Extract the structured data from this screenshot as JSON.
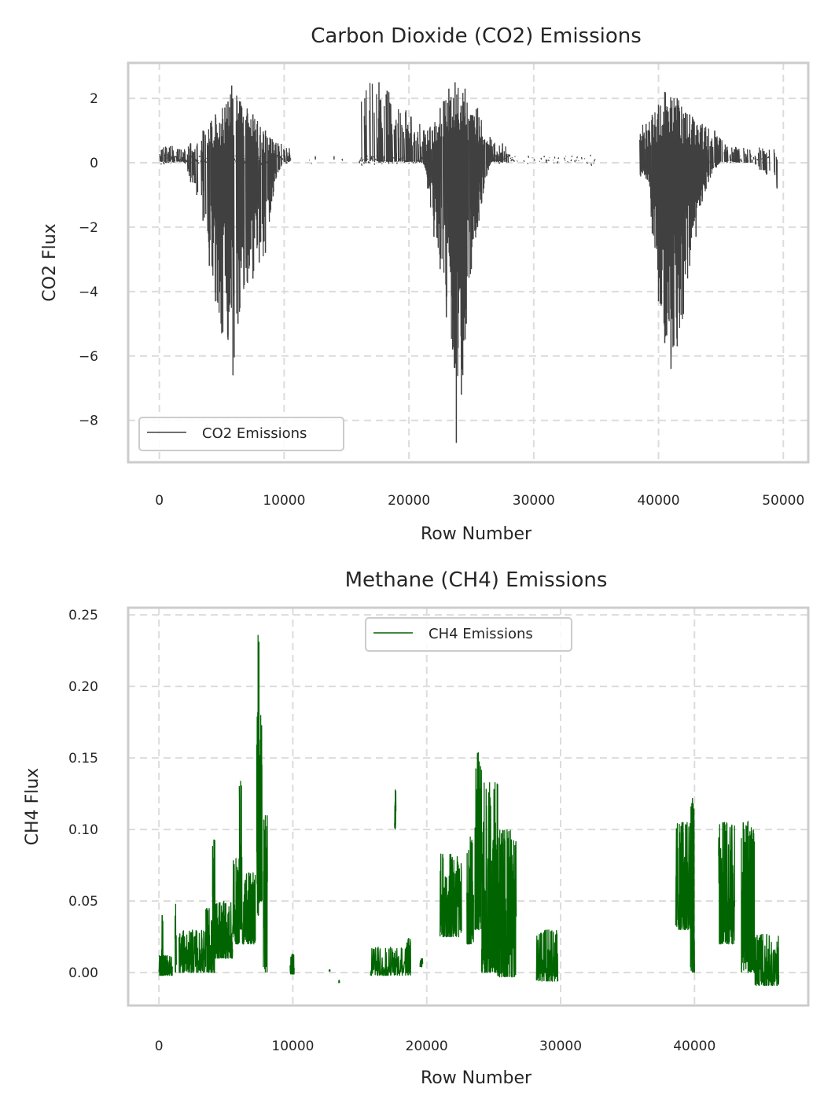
{
  "chart_data": [
    {
      "type": "line",
      "title": "Carbon Dioxide (CO2) Emissions",
      "xlabel": "Row Number",
      "ylabel": "CO2 Flux",
      "xlim": [
        -2500,
        52000
      ],
      "ylim": [
        -9.3,
        3.1
      ],
      "xticks": [
        0,
        10000,
        20000,
        30000,
        40000,
        50000
      ],
      "yticks": [
        2,
        0,
        -2,
        -4,
        -6,
        -8
      ],
      "ytick_labels": [
        "2",
        "0",
        "−2",
        "−4",
        "−6",
        "−8"
      ],
      "grid": true,
      "legend_position": "lower-left",
      "series": [
        {
          "name": "CO2 Emissions",
          "color": "#404040",
          "line_style": "dense vertical flux segments, row-level data",
          "bursts": [
            {
              "x_start": 0,
              "x_end": 10500,
              "peak_x": 5800,
              "min": -6.6,
              "max": 2.4
            },
            {
              "x_start": 16000,
              "x_end": 28000,
              "peak_x": 23700,
              "min": -8.7,
              "max": 2.5
            },
            {
              "x_start": 38500,
              "x_end": 49500,
              "peak_x": 41000,
              "min": -6.4,
              "max": 2.2
            }
          ],
          "points": [
            [
              0,
              0.1
            ],
            [
              500,
              0.2
            ],
            [
              1000,
              0.2
            ],
            [
              1500,
              0.3
            ],
            [
              2000,
              0.0
            ],
            [
              2500,
              -0.6
            ],
            [
              3000,
              -1.0
            ],
            [
              3500,
              -1.8
            ],
            [
              4000,
              -3.2
            ],
            [
              4500,
              -4.3
            ],
            [
              5000,
              -5.3
            ],
            [
              5500,
              -5.5
            ],
            [
              5900,
              -6.6
            ],
            [
              6300,
              -5.0
            ],
            [
              6800,
              -3.8
            ],
            [
              7500,
              -3.6
            ],
            [
              8000,
              -3.1
            ],
            [
              8500,
              -2.8
            ],
            [
              9000,
              -1.2
            ],
            [
              9500,
              -0.3
            ],
            [
              10000,
              0.1
            ],
            [
              12500,
              0.2
            ],
            [
              14000,
              0.2
            ],
            [
              16000,
              0.1
            ],
            [
              17000,
              0.2
            ],
            [
              18000,
              0.2
            ],
            [
              19000,
              0.3
            ],
            [
              20000,
              0.3
            ],
            [
              21000,
              0.2
            ],
            [
              21500,
              -0.8
            ],
            [
              22000,
              -2.3
            ],
            [
              22500,
              -3.3
            ],
            [
              23000,
              -4.8
            ],
            [
              23500,
              -5.8
            ],
            [
              23800,
              -8.7
            ],
            [
              24200,
              -7.2
            ],
            [
              24600,
              -5.0
            ],
            [
              25000,
              -3.3
            ],
            [
              25500,
              -2.0
            ],
            [
              26000,
              -0.8
            ],
            [
              26500,
              0.0
            ],
            [
              27500,
              0.3
            ],
            [
              28500,
              0.1
            ],
            [
              31000,
              0.0
            ],
            [
              33000,
              0.1
            ],
            [
              34500,
              0.1
            ],
            [
              39000,
              -0.5
            ],
            [
              39500,
              -2.2
            ],
            [
              40000,
              -4.3
            ],
            [
              40500,
              -5.6
            ],
            [
              41000,
              -6.4
            ],
            [
              41500,
              -5.7
            ],
            [
              42000,
              -4.7
            ],
            [
              42500,
              -3.2
            ],
            [
              43000,
              -2.3
            ],
            [
              43500,
              -1.2
            ],
            [
              44000,
              -0.6
            ],
            [
              45000,
              0.1
            ],
            [
              46500,
              0.0
            ],
            [
              47500,
              0.0
            ],
            [
              49500,
              -0.8
            ]
          ],
          "upper_envelope": [
            [
              500,
              0.5
            ],
            [
              2500,
              0.6
            ],
            [
              3500,
              1.0
            ],
            [
              4500,
              1.5
            ],
            [
              5500,
              1.9
            ],
            [
              5800,
              2.4
            ],
            [
              6500,
              1.9
            ],
            [
              7500,
              1.5
            ],
            [
              8500,
              1.0
            ],
            [
              9500,
              0.6
            ],
            [
              17600,
              2.5
            ],
            [
              21500,
              1.0
            ],
            [
              22500,
              1.7
            ],
            [
              23200,
              2.3
            ],
            [
              23700,
              2.5
            ],
            [
              24500,
              2.3
            ],
            [
              25500,
              1.7
            ],
            [
              26500,
              0.8
            ],
            [
              27500,
              0.6
            ],
            [
              39000,
              1.2
            ],
            [
              40000,
              1.8
            ],
            [
              40500,
              2.2
            ],
            [
              41500,
              2.0
            ],
            [
              42500,
              1.5
            ],
            [
              43500,
              1.2
            ],
            [
              44500,
              1.0
            ],
            [
              45500,
              0.5
            ]
          ]
        }
      ]
    },
    {
      "type": "line",
      "title": "Methane (CH4) Emissions",
      "xlabel": "Row Number",
      "ylabel": "CH4 Flux",
      "xlim": [
        -2300,
        48500
      ],
      "ylim": [
        -0.023,
        0.255
      ],
      "xticks": [
        0,
        10000,
        20000,
        30000,
        40000
      ],
      "yticks": [
        0.0,
        0.05,
        0.1,
        0.15,
        0.2,
        0.25
      ],
      "ytick_labels": [
        "0.00",
        "0.05",
        "0.10",
        "0.15",
        "0.20",
        "0.25"
      ],
      "grid": true,
      "legend_position": "upper-center",
      "series": [
        {
          "name": "CH4 Emissions",
          "color": "#006400",
          "line_style": "dense vertical flux segments, row-level data",
          "segments": [
            [
              0,
              1000,
              -0.002,
              0.012
            ],
            [
              200,
              300,
              0.0,
              0.04
            ],
            [
              1200,
              1300,
              0.0,
              0.048
            ],
            [
              1500,
              3500,
              0.0,
              0.03
            ],
            [
              3500,
              4000,
              0.0,
              0.045
            ],
            [
              4000,
              4200,
              0.0,
              0.093
            ],
            [
              4200,
              5500,
              0.01,
              0.05
            ],
            [
              5500,
              6000,
              0.02,
              0.08
            ],
            [
              6000,
              6200,
              0.03,
              0.134
            ],
            [
              6200,
              7200,
              0.02,
              0.07
            ],
            [
              7300,
              7500,
              0.04,
              0.236
            ],
            [
              7500,
              7700,
              0.05,
              0.18
            ],
            [
              7800,
              8100,
              0.0,
              0.11
            ],
            [
              9800,
              10100,
              -0.001,
              0.013
            ],
            [
              12700,
              12800,
              0.001,
              0.002
            ],
            [
              13400,
              13500,
              -0.007,
              -0.005
            ],
            [
              15800,
              18800,
              -0.002,
              0.018
            ],
            [
              17600,
              17700,
              0.1,
              0.128
            ],
            [
              18500,
              18800,
              0.0,
              0.024
            ],
            [
              19500,
              19700,
              0.004,
              0.01
            ],
            [
              21000,
              22600,
              0.025,
              0.083
            ],
            [
              23000,
              23500,
              0.02,
              0.095
            ],
            [
              23600,
              24100,
              0.03,
              0.154
            ],
            [
              24100,
              25300,
              0.0,
              0.133
            ],
            [
              25300,
              26700,
              -0.003,
              0.1
            ],
            [
              28200,
              29800,
              -0.006,
              0.03
            ],
            [
              38600,
              39700,
              0.03,
              0.105
            ],
            [
              39700,
              40000,
              0.0,
              0.122
            ],
            [
              41800,
              43000,
              0.02,
              0.105
            ],
            [
              43500,
              44500,
              0.0,
              0.106
            ],
            [
              44500,
              46300,
              -0.009,
              0.027
            ]
          ]
        }
      ]
    }
  ]
}
